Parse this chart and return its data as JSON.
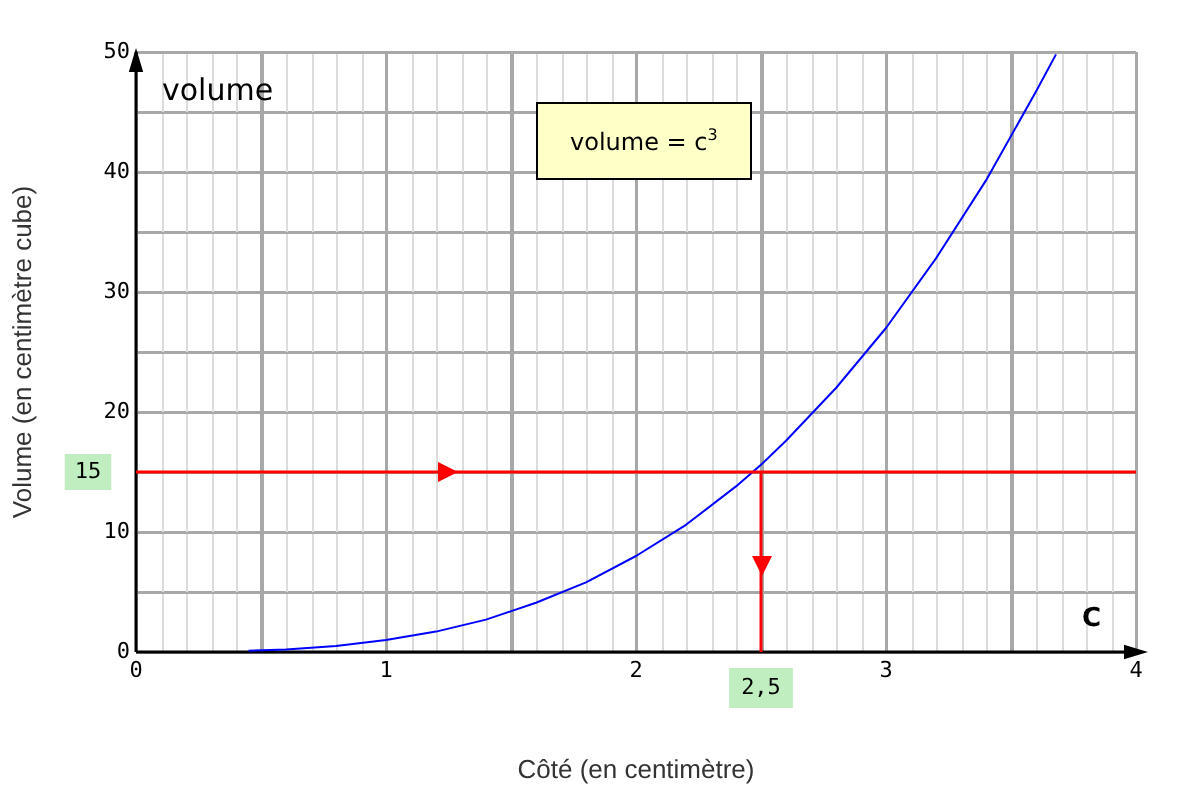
{
  "chart_data": {
    "type": "line",
    "xlabel": "Côté (en centimètre)",
    "ylabel": "Volume (en centimètre cube)",
    "annotations": [
      "volume",
      "volume = c$^{3}$",
      "C"
    ],
    "series": [
      {
        "color": "#0000ff",
        "x": [
          0.45,
          0.6,
          0.8,
          1,
          1.2,
          1.4,
          1.6,
          1.8,
          2,
          2.2,
          2.4,
          2.5,
          2.6,
          2.8,
          3,
          3.2,
          3.4,
          3.6,
          3.68
        ],
        "values": [
          0.1,
          0.2,
          0.5,
          1,
          1.7,
          2.7,
          4.1,
          5.8,
          8,
          10.6,
          13.8,
          15.6,
          17.6,
          22,
          27,
          32.8,
          39.3,
          46.7,
          49.8
        ]
      }
    ],
    "xlim": [
      0,
      4
    ],
    "ylim": [
      0,
      50
    ],
    "xticks": [
      0,
      {
        "value": 0.5,
        "label": null
      },
      1,
      {
        "value": 1.5,
        "label": null
      },
      2,
      {
        "value": 2.5,
        "label": null
      },
      3,
      {
        "value": 3.5,
        "label": null
      },
      4
    ],
    "yticks": [
      0,
      {
        "value": 5,
        "label": null
      },
      10,
      {
        "value": 15,
        "label": null
      },
      20,
      {
        "value": 25,
        "label": null
      },
      30,
      {
        "value": 35,
        "label": null
      },
      40,
      {
        "value": 45,
        "label": null
      },
      50
    ],
    "ref_lines": [
      {
        "axis": "y",
        "value": 15,
        "label": "15",
        "color": "#ff0000"
      },
      {
        "axis": "x",
        "value": 2.5,
        "label": "2,5",
        "color": "#ff0000"
      }
    ],
    "grid": true,
    "marker": "none",
    "line_style": "solid",
    "legend": false
  }
}
